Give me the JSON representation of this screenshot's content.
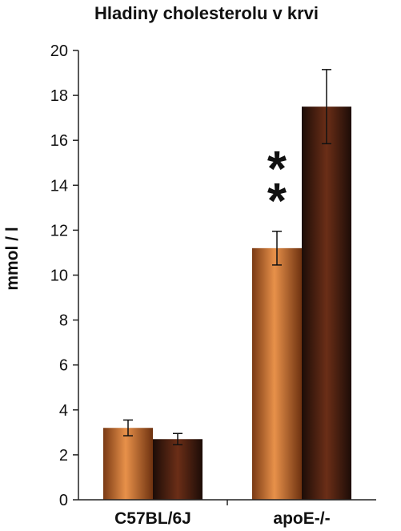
{
  "chart_data": {
    "type": "bar",
    "title": "Hladiny cholesterolu v krvi",
    "xlabel": "",
    "ylabel": "mmol / l",
    "ylim": [
      0,
      20
    ],
    "yticks": [
      "0",
      "2",
      "4",
      "6",
      "8",
      "10",
      "12",
      "14",
      "16",
      "18",
      "20"
    ],
    "grid": false,
    "categories": [
      "C57BL/6J",
      "apoE-/-"
    ],
    "series": [
      {
        "values": [
          3.2,
          11.2
        ],
        "errors": [
          0.35,
          0.75
        ],
        "color": "#d9803c"
      },
      {
        "values": [
          2.7,
          17.5
        ],
        "errors": [
          0.25,
          1.65
        ],
        "color": "#4a1f12"
      }
    ],
    "annotations": [
      {
        "category": "apoE-/-",
        "text": "*"
      },
      {
        "category": "apoE-/-",
        "text": "*"
      }
    ]
  }
}
